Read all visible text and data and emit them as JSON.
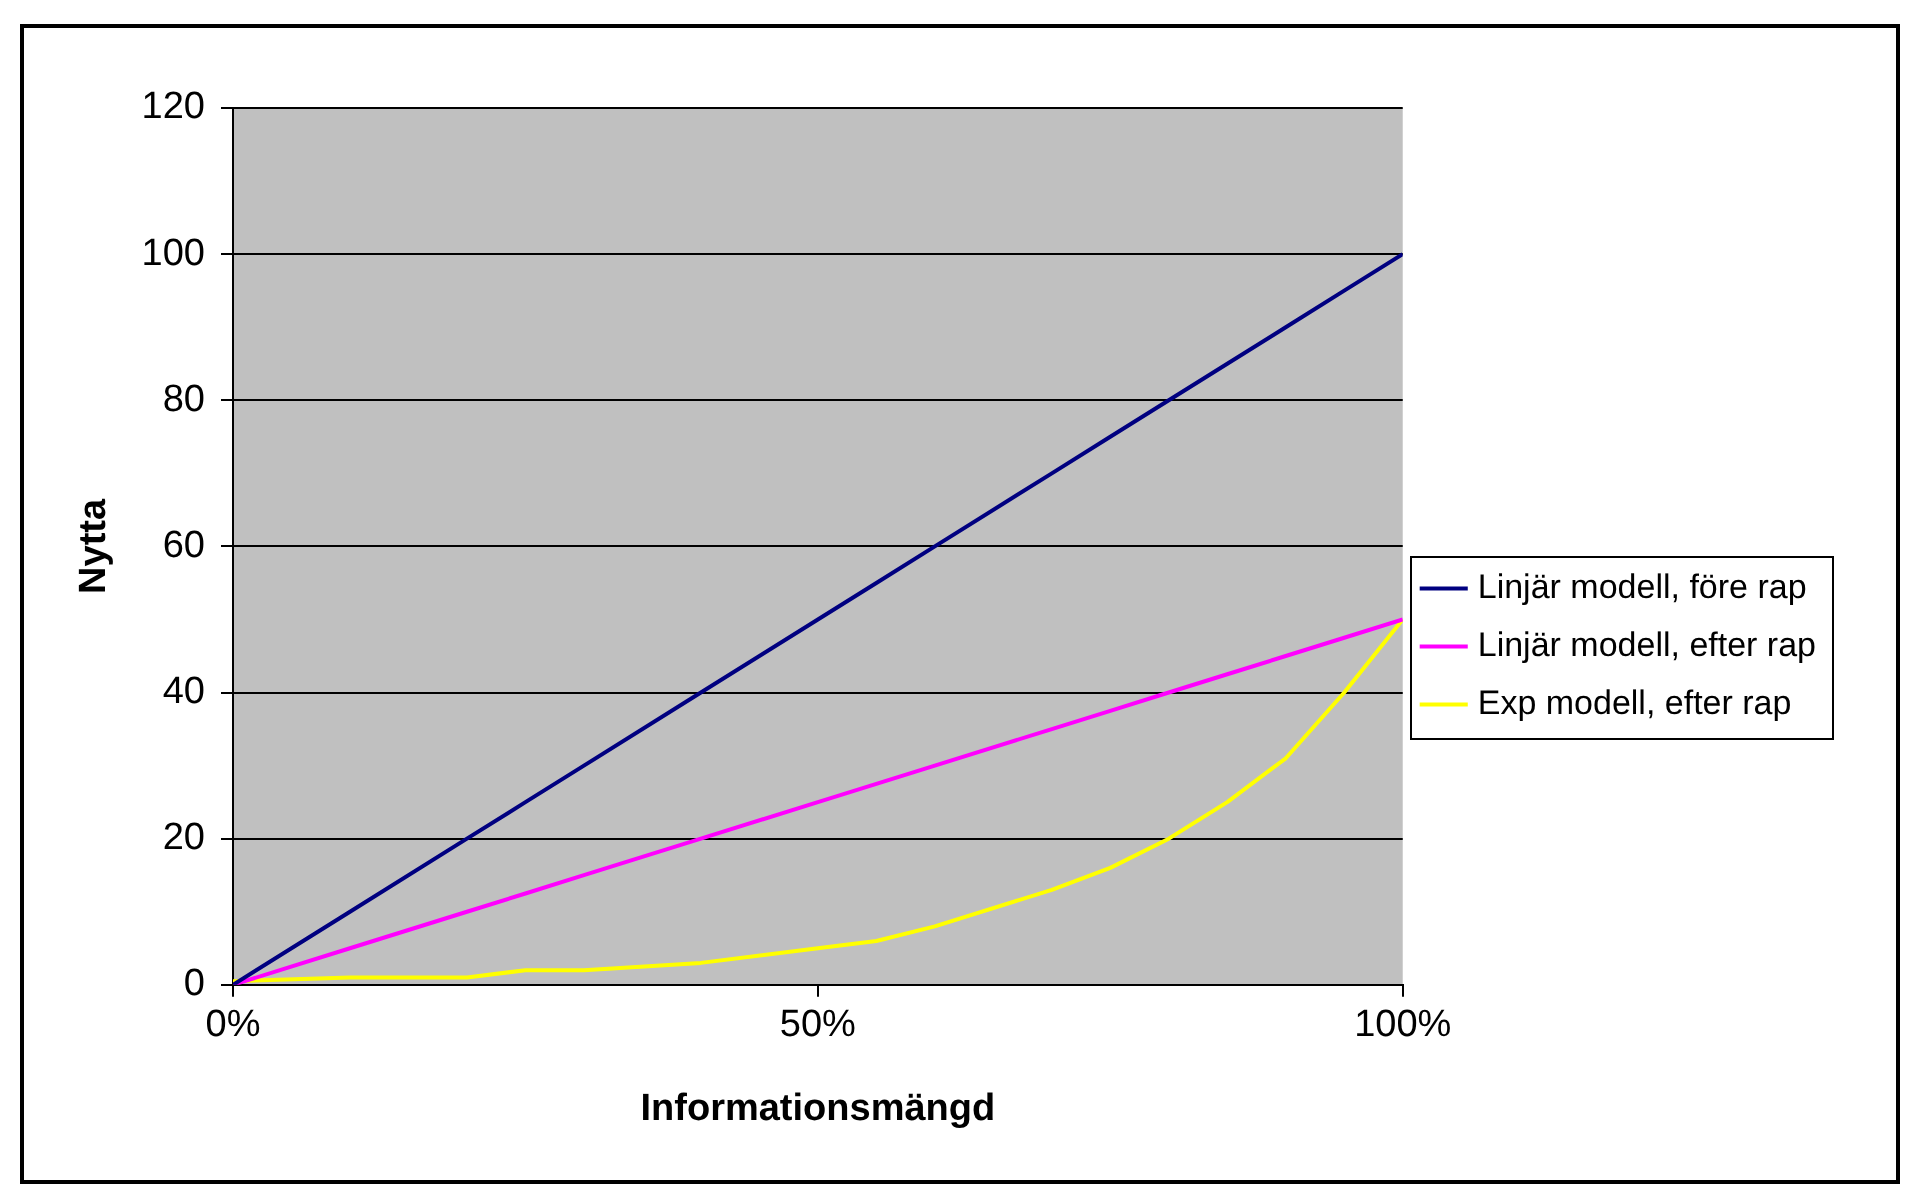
{
  "chart_data": {
    "type": "line",
    "xlabel": "Informationsmängd",
    "ylabel": "Nytta",
    "x": [
      0,
      10,
      20,
      25,
      30,
      40,
      50,
      55,
      60,
      70,
      75,
      80,
      85,
      90,
      95,
      100
    ],
    "series": [
      {
        "name": "Linjär modell, före rap",
        "color": "#000080",
        "values": [
          0,
          10,
          20,
          25,
          30,
          40,
          50,
          55,
          60,
          70,
          75,
          80,
          85,
          90,
          95,
          100
        ]
      },
      {
        "name": "Linjär modell, efter rap",
        "color": "#ff00ff",
        "values": [
          0,
          5,
          10,
          12.5,
          15,
          20,
          25,
          27.5,
          30,
          35,
          37.5,
          40,
          42.5,
          45,
          47.5,
          50
        ]
      },
      {
        "name": "Exp modell, efter rap",
        "color": "#ffff00",
        "values": [
          0.5,
          1,
          1,
          2,
          2,
          3,
          5,
          6,
          8,
          13,
          16,
          20,
          25,
          31,
          40,
          50
        ]
      }
    ],
    "xlim": [
      0,
      100
    ],
    "xticks": [
      {
        "value": 0,
        "label": "0%"
      },
      {
        "value": 50,
        "label": "50%"
      },
      {
        "value": 100,
        "label": "100%"
      }
    ],
    "ylim": [
      0,
      120
    ],
    "yticks": [
      0,
      20,
      40,
      60,
      80,
      100,
      120
    ],
    "grid": "y",
    "legend": "right",
    "marker": "none",
    "line_style": "solid"
  }
}
